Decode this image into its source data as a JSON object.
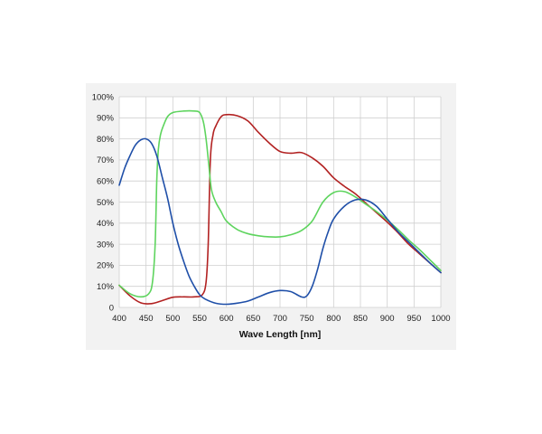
{
  "chart_data": {
    "type": "line",
    "title": "",
    "xlabel": "Wave Length [nm]",
    "ylabel": "",
    "xlim": [
      400,
      1000
    ],
    "ylim": [
      0,
      100
    ],
    "x_ticks": [
      400,
      450,
      500,
      550,
      600,
      650,
      700,
      750,
      800,
      850,
      900,
      950,
      1000
    ],
    "y_ticks": [
      "0",
      "10%",
      "20%",
      "30%",
      "40%",
      "50%",
      "60%",
      "70%",
      "80%",
      "90%",
      "100%"
    ],
    "y_tick_values": [
      0,
      10,
      20,
      30,
      40,
      50,
      60,
      70,
      80,
      90,
      100
    ],
    "grid": true,
    "legend": "none",
    "series": [
      {
        "color": "#b22222",
        "x": [
          400,
          420,
          440,
          460,
          480,
          500,
          520,
          540,
          555,
          562,
          566,
          570,
          575,
          580,
          590,
          600,
          620,
          640,
          660,
          680,
          700,
          720,
          740,
          760,
          780,
          800,
          820,
          840,
          860,
          880,
          900,
          920,
          940,
          960,
          980,
          1000
        ],
        "y": [
          10.5,
          5.5,
          2.2,
          1.8,
          3.2,
          4.8,
          5,
          5,
          6,
          12,
          30,
          70,
          82,
          86,
          90.5,
          91.5,
          91,
          88.5,
          83,
          78,
          74,
          73.2,
          73.5,
          71,
          67,
          61.5,
          57.5,
          54,
          49.5,
          45,
          40.5,
          35.5,
          30,
          25.5,
          21,
          16.5
        ]
      },
      {
        "color": "#5ed45e",
        "x": [
          400,
          420,
          440,
          455,
          462,
          467,
          470,
          473,
          477,
          482,
          490,
          500,
          520,
          540,
          550,
          557,
          562,
          567,
          572,
          580,
          590,
          600,
          620,
          640,
          660,
          680,
          700,
          720,
          740,
          760,
          780,
          800,
          820,
          840,
          860,
          880,
          900,
          920,
          940,
          960,
          980,
          1000
        ],
        "y": [
          10.5,
          6.5,
          5,
          6.5,
          12,
          30,
          60,
          75,
          82,
          86,
          90.5,
          92.5,
          93.2,
          93.2,
          92.5,
          88,
          80,
          68,
          56,
          50,
          45.5,
          41,
          37,
          35,
          34,
          33.5,
          33.5,
          34.5,
          36.5,
          41,
          50,
          54.5,
          55,
          52.5,
          49,
          45.5,
          41.5,
          37,
          32,
          27.5,
          22.5,
          17.5
        ]
      },
      {
        "color": "#1f4fa8",
        "x": [
          400,
          410,
          420,
          430,
          440,
          450,
          460,
          470,
          480,
          490,
          500,
          510,
          520,
          530,
          540,
          550,
          560,
          580,
          600,
          620,
          640,
          660,
          680,
          700,
          720,
          740,
          750,
          760,
          770,
          780,
          790,
          800,
          820,
          840,
          860,
          880,
          900,
          920,
          940,
          960,
          980,
          1000
        ],
        "y": [
          58,
          66,
          72,
          77,
          79.5,
          80,
          78,
          72,
          62,
          52,
          40,
          30,
          22,
          15,
          10,
          6,
          4,
          2,
          1.5,
          2,
          3,
          5,
          7,
          8,
          7.5,
          5,
          5.5,
          10,
          18,
          28,
          36,
          42,
          48,
          51,
          51,
          48,
          42,
          36,
          31,
          26,
          21,
          16.5
        ]
      }
    ]
  }
}
